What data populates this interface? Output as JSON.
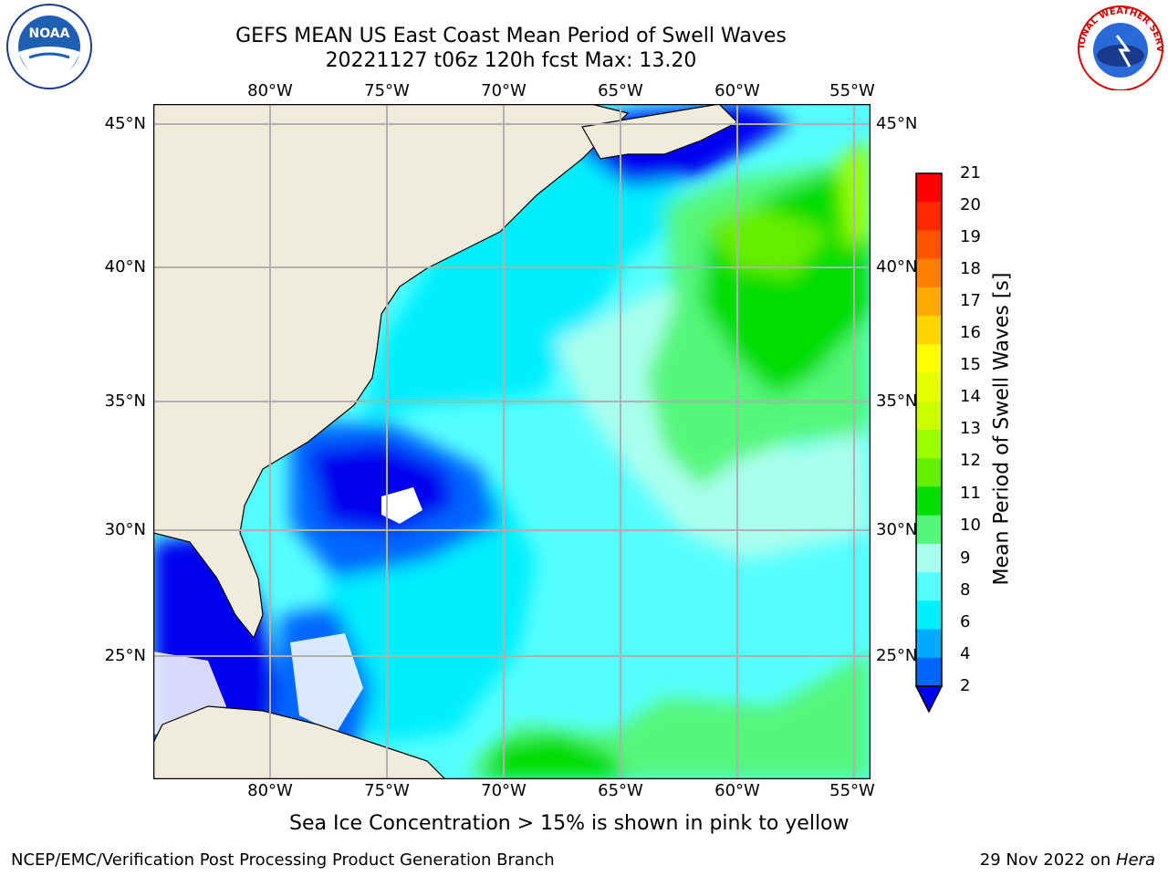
{
  "header": {
    "title_line1": "GEFS MEAN US East Coast Mean Period of Swell Waves",
    "title_line2": "20221127 t06z 120h fcst   Max: 13.20"
  },
  "map": {
    "lon_labels": [
      "80°W",
      "75°W",
      "70°W",
      "65°W",
      "60°W",
      "55°W"
    ],
    "lat_labels": [
      "45°N",
      "40°N",
      "35°N",
      "30°N",
      "25°N"
    ],
    "land_color": "#efecdc",
    "grid_color": "#b0b0b0"
  },
  "colorbar": {
    "label": "Mean Period of Swell Waves [s]",
    "ticks": [
      "21",
      "20",
      "19",
      "18",
      "17",
      "16",
      "15",
      "14",
      "13",
      "12",
      "11",
      "10",
      "9",
      "8",
      "6",
      "4",
      "2"
    ],
    "colors": [
      "#ff0000",
      "#ff2a00",
      "#ff5500",
      "#ff8000",
      "#ffaa00",
      "#ffd400",
      "#ffff00",
      "#e6ff00",
      "#ccff00",
      "#99ff00",
      "#66ee00",
      "#00dd00",
      "#55f77a",
      "#aaffee",
      "#55ffff",
      "#00eeff",
      "#00aaff",
      "#0066ff",
      "#0000ee"
    ]
  },
  "footer": {
    "note": "Sea Ice Concentration > 15% is shown in pink to yellow",
    "credit": "NCEP/EMC/Verification Post Processing Product Generation Branch",
    "date_prefix": "29 Nov 2022 on ",
    "date_host": "Hera"
  },
  "logos": {
    "left": "NOAA",
    "right_arc_text": "NATIONAL WEATHER SERVICE"
  }
}
